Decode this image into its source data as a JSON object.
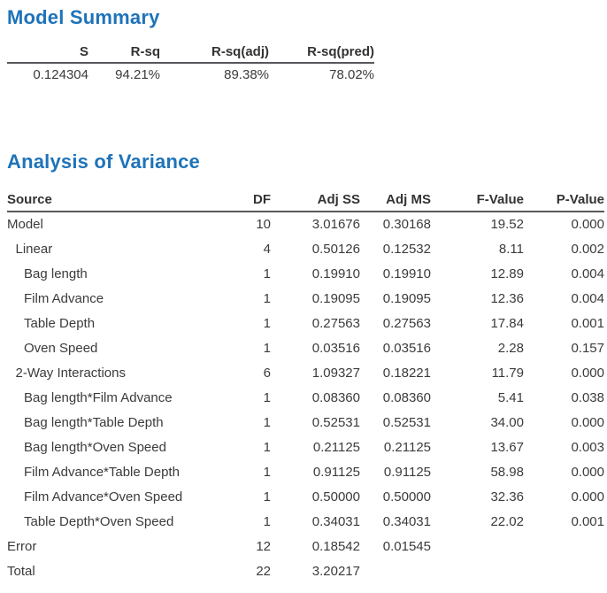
{
  "colors": {
    "title_blue": "#1e73b9",
    "body_text": "#3b3b3b",
    "header_rule": "#57585b",
    "background": "#ffffff"
  },
  "model_summary": {
    "title": "Model Summary",
    "columns": [
      "S",
      "R-sq",
      "R-sq(adj)",
      "R-sq(pred)"
    ],
    "row": [
      "0.124304",
      "94.21%",
      "89.38%",
      "78.02%"
    ]
  },
  "anova": {
    "title": "Analysis of Variance",
    "columns": [
      "Source",
      "DF",
      "Adj SS",
      "Adj MS",
      "F-Value",
      "P-Value"
    ],
    "rows": [
      {
        "source": "Model",
        "indent": 0,
        "df": "10",
        "adj_ss": "3.01676",
        "adj_ms": "0.30168",
        "f": "19.52",
        "p": "0.000"
      },
      {
        "source": "Linear",
        "indent": 1,
        "df": "4",
        "adj_ss": "0.50126",
        "adj_ms": "0.12532",
        "f": "8.11",
        "p": "0.002"
      },
      {
        "source": "Bag length",
        "indent": 2,
        "df": "1",
        "adj_ss": "0.19910",
        "adj_ms": "0.19910",
        "f": "12.89",
        "p": "0.004"
      },
      {
        "source": "Film Advance",
        "indent": 2,
        "df": "1",
        "adj_ss": "0.19095",
        "adj_ms": "0.19095",
        "f": "12.36",
        "p": "0.004"
      },
      {
        "source": "Table Depth",
        "indent": 2,
        "df": "1",
        "adj_ss": "0.27563",
        "adj_ms": "0.27563",
        "f": "17.84",
        "p": "0.001"
      },
      {
        "source": "Oven Speed",
        "indent": 2,
        "df": "1",
        "adj_ss": "0.03516",
        "adj_ms": "0.03516",
        "f": "2.28",
        "p": "0.157"
      },
      {
        "source": "2-Way Interactions",
        "indent": 1,
        "df": "6",
        "adj_ss": "1.09327",
        "adj_ms": "0.18221",
        "f": "11.79",
        "p": "0.000"
      },
      {
        "source": "Bag length*Film Advance",
        "indent": 2,
        "df": "1",
        "adj_ss": "0.08360",
        "adj_ms": "0.08360",
        "f": "5.41",
        "p": "0.038"
      },
      {
        "source": "Bag length*Table Depth",
        "indent": 2,
        "df": "1",
        "adj_ss": "0.52531",
        "adj_ms": "0.52531",
        "f": "34.00",
        "p": "0.000"
      },
      {
        "source": "Bag length*Oven Speed",
        "indent": 2,
        "df": "1",
        "adj_ss": "0.21125",
        "adj_ms": "0.21125",
        "f": "13.67",
        "p": "0.003"
      },
      {
        "source": "Film Advance*Table Depth",
        "indent": 2,
        "df": "1",
        "adj_ss": "0.91125",
        "adj_ms": "0.91125",
        "f": "58.98",
        "p": "0.000"
      },
      {
        "source": "Film Advance*Oven Speed",
        "indent": 2,
        "df": "1",
        "adj_ss": "0.50000",
        "adj_ms": "0.50000",
        "f": "32.36",
        "p": "0.000"
      },
      {
        "source": "Table Depth*Oven Speed",
        "indent": 2,
        "df": "1",
        "adj_ss": "0.34031",
        "adj_ms": "0.34031",
        "f": "22.02",
        "p": "0.001"
      },
      {
        "source": "Error",
        "indent": 0,
        "df": "12",
        "adj_ss": "0.18542",
        "adj_ms": "0.01545",
        "f": "",
        "p": ""
      },
      {
        "source": "Total",
        "indent": 0,
        "df": "22",
        "adj_ss": "3.20217",
        "adj_ms": "",
        "f": "",
        "p": ""
      }
    ]
  }
}
